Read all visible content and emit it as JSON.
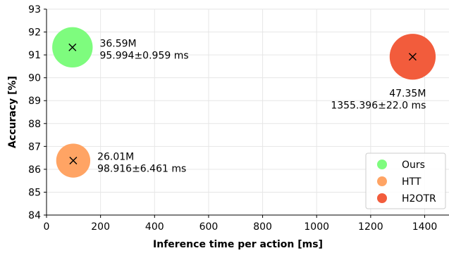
{
  "chart_data": {
    "type": "scatter",
    "xlabel": "Inference time per action [ms]",
    "ylabel": "Accuracy [%]",
    "xlim": [
      0,
      1490
    ],
    "ylim": [
      84,
      93
    ],
    "x_ticks": [
      0,
      200,
      400,
      600,
      800,
      1000,
      1200,
      1400
    ],
    "y_ticks": [
      84,
      85,
      86,
      87,
      88,
      89,
      90,
      91,
      92,
      93
    ],
    "grid": true,
    "legend_position": "bottom-right",
    "series": [
      {
        "name": "Ours",
        "color": "#7efc7e",
        "x": 95.994,
        "y": 91.33,
        "params_m": 36.59,
        "label_line1": "36.59M",
        "label_line2": "95.994±0.959 ms"
      },
      {
        "name": "HTT",
        "color": "#ffa464",
        "x": 98.916,
        "y": 86.38,
        "params_m": 26.01,
        "label_line1": "26.01M",
        "label_line2": "98.916±6.461 ms"
      },
      {
        "name": "H2OTR",
        "color": "#f25c3c",
        "x": 1355.396,
        "y": 90.92,
        "params_m": 47.35,
        "label_line1": "47.35M",
        "label_line2": "1355.396±22.0 ms"
      }
    ]
  }
}
